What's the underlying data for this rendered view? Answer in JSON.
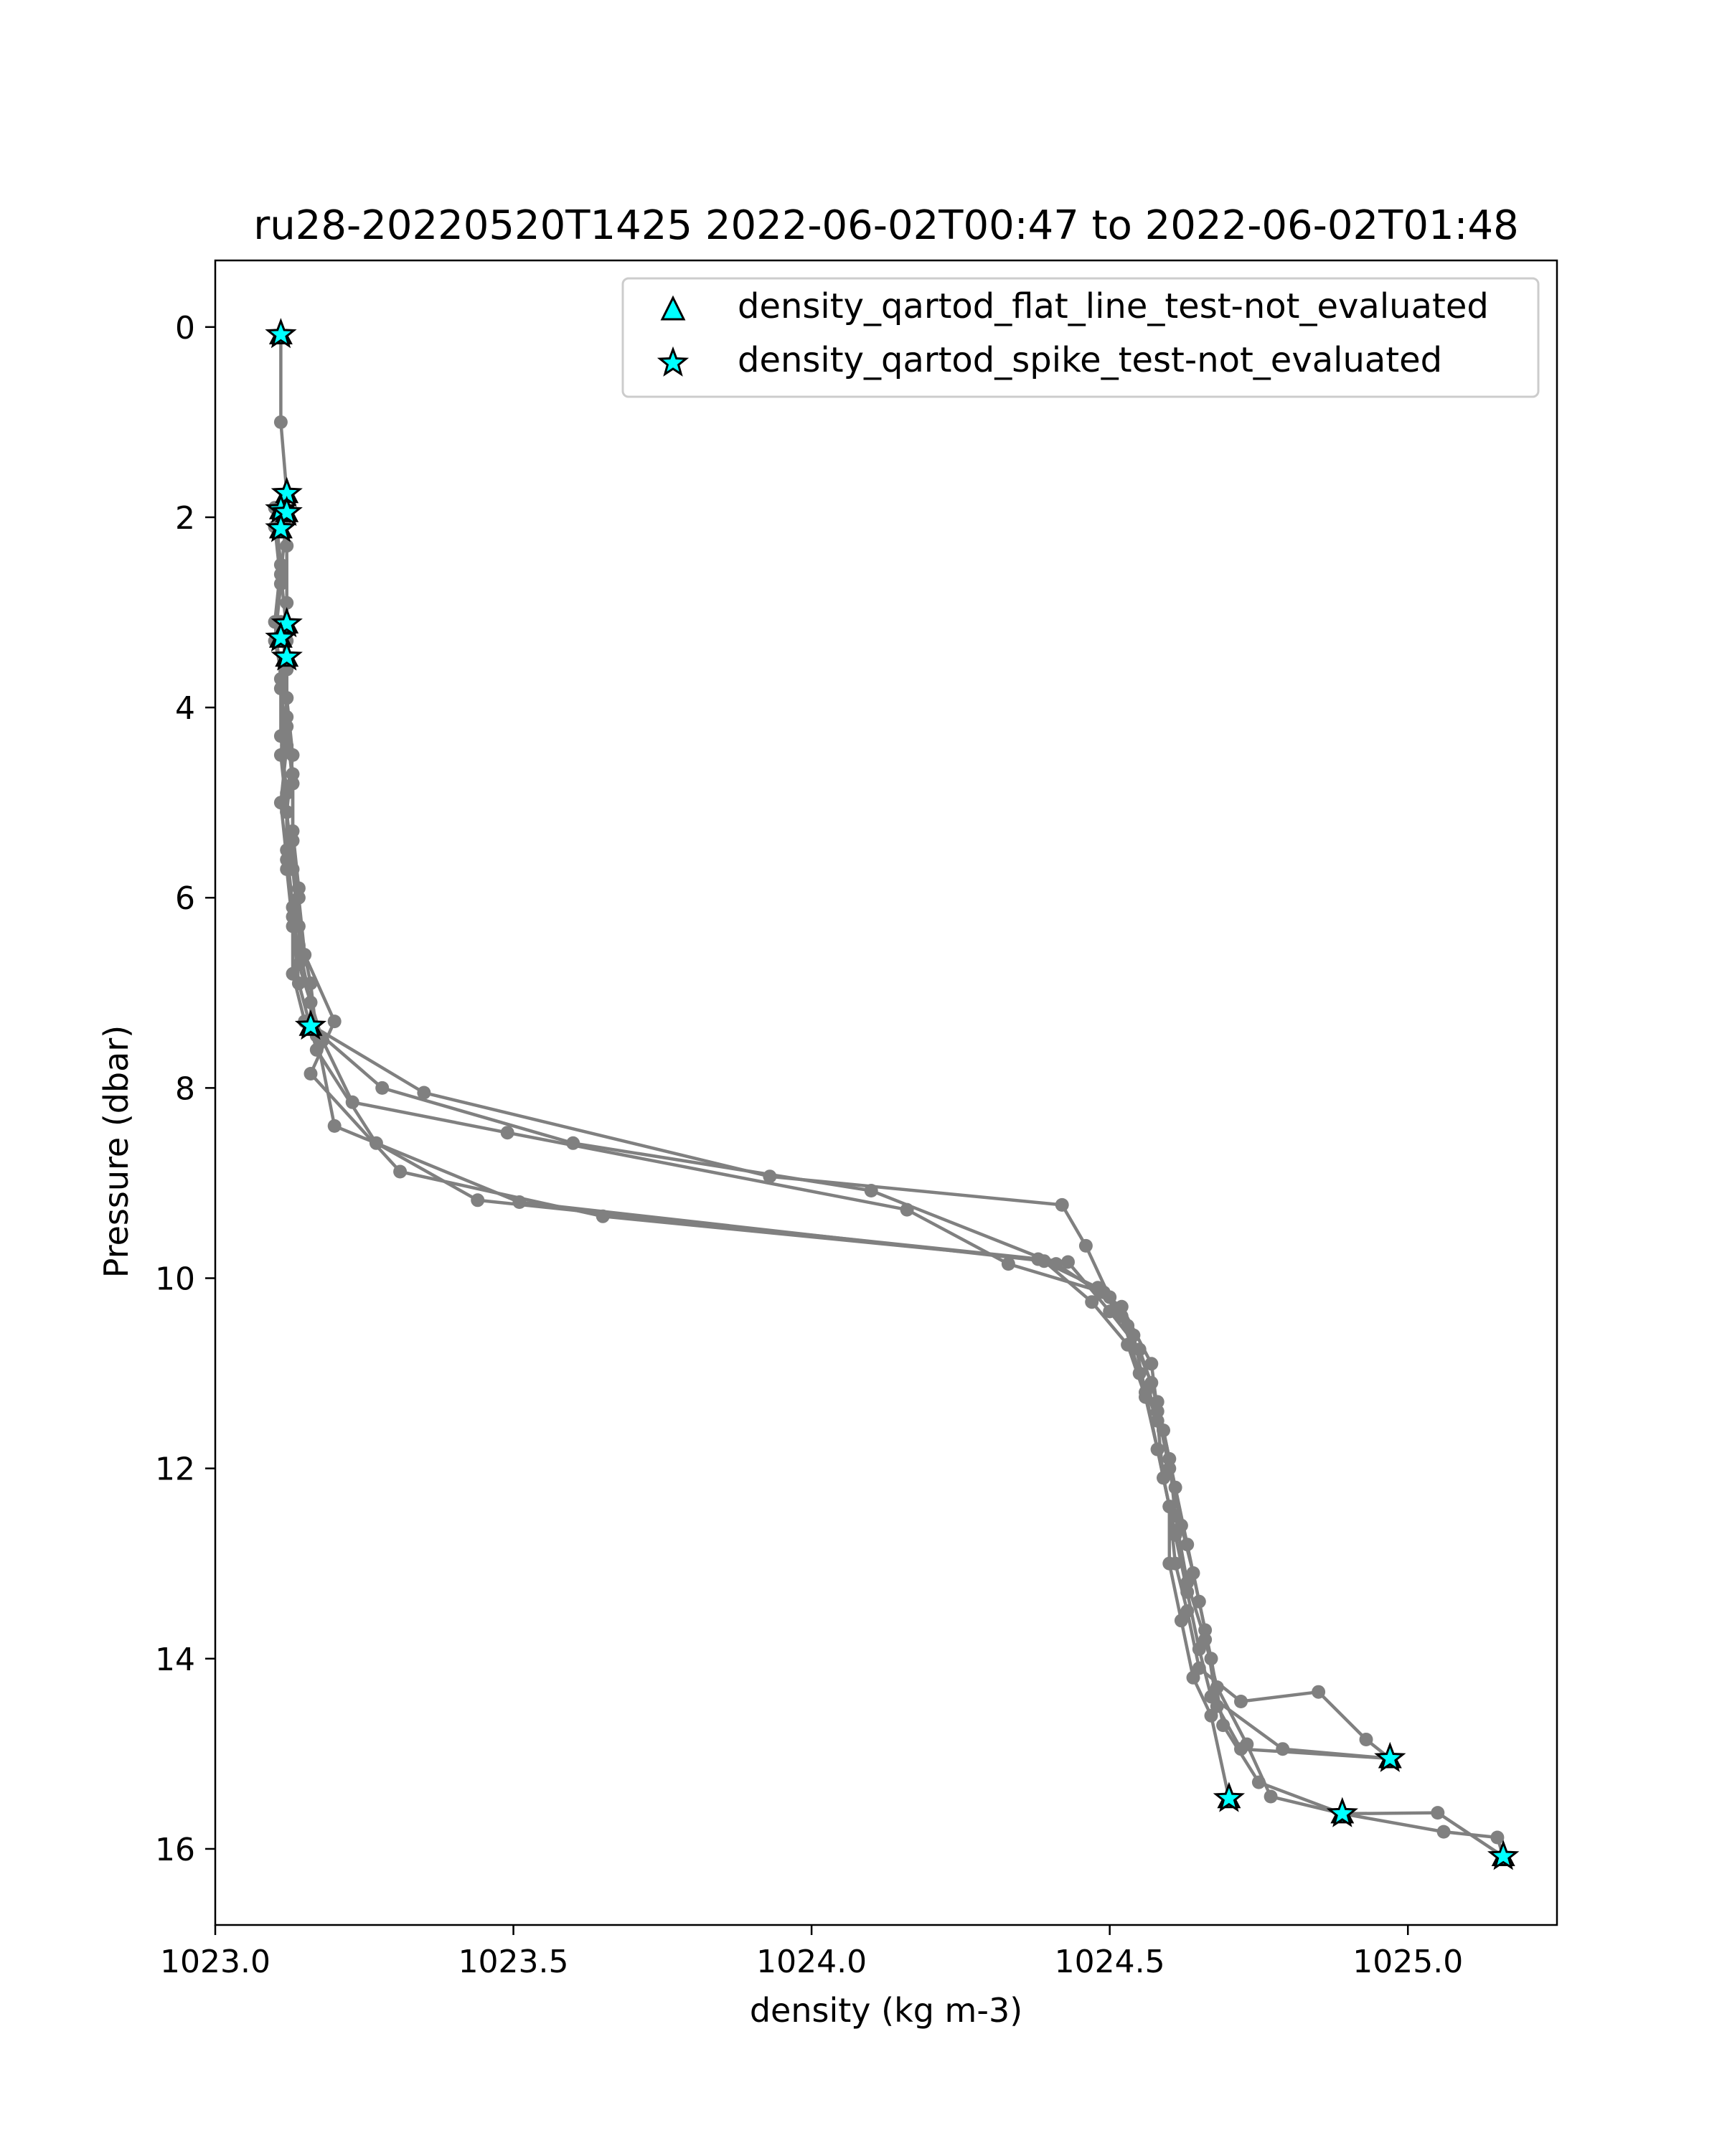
{
  "chart_data": {
    "type": "scatter",
    "title": "ru28-20220520T1425 2022-06-02T00:47 to 2022-06-02T01:48",
    "xlabel": "density (kg m-3)",
    "ylabel": "Pressure (dbar)",
    "xlim": [
      1023.0,
      1025.25
    ],
    "ylim": [
      16.8,
      -0.7
    ],
    "y_inverted": true,
    "grid": false,
    "legend_position": "top-right",
    "xticks": [
      "1023.0",
      "1023.5",
      "1024.0",
      "1024.5",
      "1025.0"
    ],
    "yticks": [
      "0",
      "2",
      "4",
      "6",
      "8",
      "10",
      "12",
      "14",
      "16"
    ],
    "colors": {
      "line": "#808080",
      "marker_fill": "#00ffff",
      "marker_edge": "#000000"
    },
    "legend": [
      {
        "label": "density_qartod_flat_line_test-not_evaluated",
        "marker": "triangle"
      },
      {
        "label": "density_qartod_spike_test-not_evaluated",
        "marker": "star"
      }
    ],
    "profiles": [
      [
        [
          1023.11,
          0.08
        ],
        [
          1023.11,
          1.0
        ],
        [
          1023.12,
          1.75
        ],
        [
          1023.12,
          2.3
        ],
        [
          1023.12,
          2.9
        ],
        [
          1023.12,
          3.5
        ],
        [
          1023.12,
          4.1
        ],
        [
          1023.13,
          4.7
        ],
        [
          1023.13,
          5.3
        ],
        [
          1023.14,
          5.9
        ],
        [
          1023.14,
          6.5
        ],
        [
          1023.16,
          7.1
        ],
        [
          1023.16,
          7.35
        ],
        [
          1023.28,
          8.0
        ],
        [
          1023.6,
          8.58
        ],
        [
          1024.1,
          9.08
        ],
        [
          1024.41,
          9.85
        ],
        [
          1024.52,
          10.3
        ],
        [
          1024.57,
          10.9
        ],
        [
          1024.58,
          11.4
        ],
        [
          1024.6,
          12.0
        ],
        [
          1024.62,
          12.6
        ],
        [
          1024.64,
          13.1
        ],
        [
          1024.66,
          13.7
        ],
        [
          1024.68,
          14.5
        ],
        [
          1024.72,
          14.95
        ],
        [
          1024.97,
          15.05
        ]
      ],
      [
        [
          1023.12,
          2.0
        ],
        [
          1023.11,
          2.6
        ],
        [
          1023.12,
          3.2
        ],
        [
          1023.11,
          3.8
        ],
        [
          1023.12,
          4.4
        ],
        [
          1023.11,
          5.0
        ],
        [
          1023.12,
          5.6
        ],
        [
          1023.13,
          6.2
        ],
        [
          1023.13,
          6.8
        ],
        [
          1023.15,
          7.3
        ],
        [
          1023.35,
          8.05
        ],
        [
          1023.93,
          8.93
        ],
        [
          1024.42,
          9.23
        ],
        [
          1024.46,
          9.66
        ],
        [
          1024.5,
          10.2
        ],
        [
          1024.54,
          10.6
        ],
        [
          1024.56,
          11.2
        ],
        [
          1024.58,
          11.8
        ],
        [
          1024.6,
          12.4
        ],
        [
          1024.6,
          13.0
        ],
        [
          1024.62,
          13.6
        ],
        [
          1024.64,
          14.2
        ],
        [
          1024.67,
          14.6
        ],
        [
          1024.7,
          15.47
        ]
      ],
      [
        [
          1023.1,
          1.9
        ],
        [
          1023.11,
          2.5
        ],
        [
          1023.1,
          3.1
        ],
        [
          1023.11,
          3.7
        ],
        [
          1023.11,
          4.3
        ],
        [
          1023.12,
          4.9
        ],
        [
          1023.12,
          5.5
        ],
        [
          1023.13,
          6.1
        ],
        [
          1023.14,
          6.7
        ],
        [
          1023.18,
          7.5
        ],
        [
          1023.23,
          8.15
        ],
        [
          1023.49,
          8.47
        ],
        [
          1024.16,
          9.28
        ],
        [
          1024.33,
          9.85
        ],
        [
          1024.49,
          10.15
        ],
        [
          1024.53,
          10.5
        ],
        [
          1024.57,
          11.1
        ],
        [
          1024.59,
          11.6
        ],
        [
          1024.61,
          12.2
        ],
        [
          1024.63,
          12.8
        ],
        [
          1024.65,
          13.4
        ],
        [
          1024.67,
          14.0
        ],
        [
          1024.69,
          14.7
        ],
        [
          1024.75,
          15.3
        ],
        [
          1024.89,
          15.63
        ],
        [
          1025.05,
          15.62
        ],
        [
          1025.16,
          16.08
        ]
      ],
      [
        [
          1023.1,
          2.1
        ],
        [
          1023.11,
          2.7
        ],
        [
          1023.1,
          3.3
        ],
        [
          1023.12,
          3.9
        ],
        [
          1023.11,
          4.5
        ],
        [
          1023.12,
          5.1
        ],
        [
          1023.12,
          5.7
        ],
        [
          1023.13,
          6.3
        ],
        [
          1023.14,
          6.9
        ],
        [
          1023.17,
          7.6
        ],
        [
          1023.27,
          8.58
        ],
        [
          1023.44,
          9.18
        ],
        [
          1024.43,
          9.83
        ],
        [
          1024.5,
          10.35
        ],
        [
          1024.55,
          10.75
        ],
        [
          1024.58,
          11.3
        ],
        [
          1024.6,
          11.9
        ],
        [
          1024.61,
          12.5
        ],
        [
          1024.63,
          13.2
        ],
        [
          1024.66,
          13.8
        ],
        [
          1024.68,
          14.3
        ],
        [
          1024.73,
          14.9
        ],
        [
          1024.77,
          15.45
        ],
        [
          1024.89,
          15.63
        ],
        [
          1025.06,
          15.82
        ],
        [
          1025.15,
          15.88
        ],
        [
          1025.16,
          16.08
        ]
      ],
      [
        [
          1023.11,
          3.1
        ],
        [
          1023.12,
          3.6
        ],
        [
          1023.12,
          4.2
        ],
        [
          1023.13,
          4.8
        ],
        [
          1023.13,
          5.4
        ],
        [
          1023.14,
          6.0
        ],
        [
          1023.15,
          6.6
        ],
        [
          1023.2,
          7.3
        ],
        [
          1023.16,
          7.85
        ],
        [
          1023.31,
          8.88
        ],
        [
          1023.65,
          9.35
        ],
        [
          1024.38,
          9.8
        ],
        [
          1024.48,
          10.1
        ],
        [
          1024.52,
          10.4
        ],
        [
          1024.55,
          11.0
        ],
        [
          1024.58,
          11.5
        ],
        [
          1024.59,
          12.1
        ],
        [
          1024.61,
          12.7
        ],
        [
          1024.63,
          13.3
        ],
        [
          1024.65,
          13.9
        ],
        [
          1024.67,
          14.4
        ],
        [
          1024.79,
          14.95
        ],
        [
          1024.97,
          15.05
        ]
      ],
      [
        [
          1023.12,
          3.3
        ],
        [
          1023.12,
          3.9
        ],
        [
          1023.13,
          4.5
        ],
        [
          1023.12,
          5.1
        ],
        [
          1023.13,
          5.7
        ],
        [
          1023.14,
          6.3
        ],
        [
          1023.16,
          6.9
        ],
        [
          1023.17,
          7.45
        ],
        [
          1023.2,
          8.4
        ],
        [
          1023.51,
          9.2
        ],
        [
          1024.39,
          9.82
        ],
        [
          1024.47,
          10.25
        ],
        [
          1024.53,
          10.7
        ],
        [
          1024.56,
          11.25
        ],
        [
          1024.58,
          11.8
        ],
        [
          1024.6,
          12.4
        ],
        [
          1024.61,
          13.0
        ],
        [
          1024.63,
          13.5
        ],
        [
          1024.65,
          14.1
        ],
        [
          1024.72,
          14.45
        ],
        [
          1024.85,
          14.35
        ],
        [
          1024.93,
          14.85
        ],
        [
          1024.97,
          15.05
        ]
      ]
    ],
    "triangle_points": [
      [
        1023.11,
        0.08
      ],
      [
        1023.12,
        1.75
      ],
      [
        1023.11,
        1.92
      ],
      [
        1023.12,
        1.95
      ],
      [
        1023.11,
        2.12
      ],
      [
        1023.12,
        3.12
      ],
      [
        1023.11,
        3.27
      ],
      [
        1023.12,
        3.47
      ],
      [
        1023.16,
        7.35
      ],
      [
        1024.97,
        15.05
      ],
      [
        1024.7,
        15.47
      ],
      [
        1024.89,
        15.63
      ],
      [
        1025.16,
        16.08
      ]
    ],
    "star_points": [
      [
        1023.11,
        0.08
      ],
      [
        1023.12,
        1.75
      ],
      [
        1023.11,
        1.92
      ],
      [
        1023.12,
        1.95
      ],
      [
        1023.11,
        2.12
      ],
      [
        1023.12,
        3.12
      ],
      [
        1023.11,
        3.27
      ],
      [
        1023.12,
        3.47
      ],
      [
        1023.16,
        7.35
      ],
      [
        1024.97,
        15.05
      ],
      [
        1024.7,
        15.47
      ],
      [
        1024.89,
        15.63
      ],
      [
        1025.16,
        16.08
      ]
    ]
  }
}
